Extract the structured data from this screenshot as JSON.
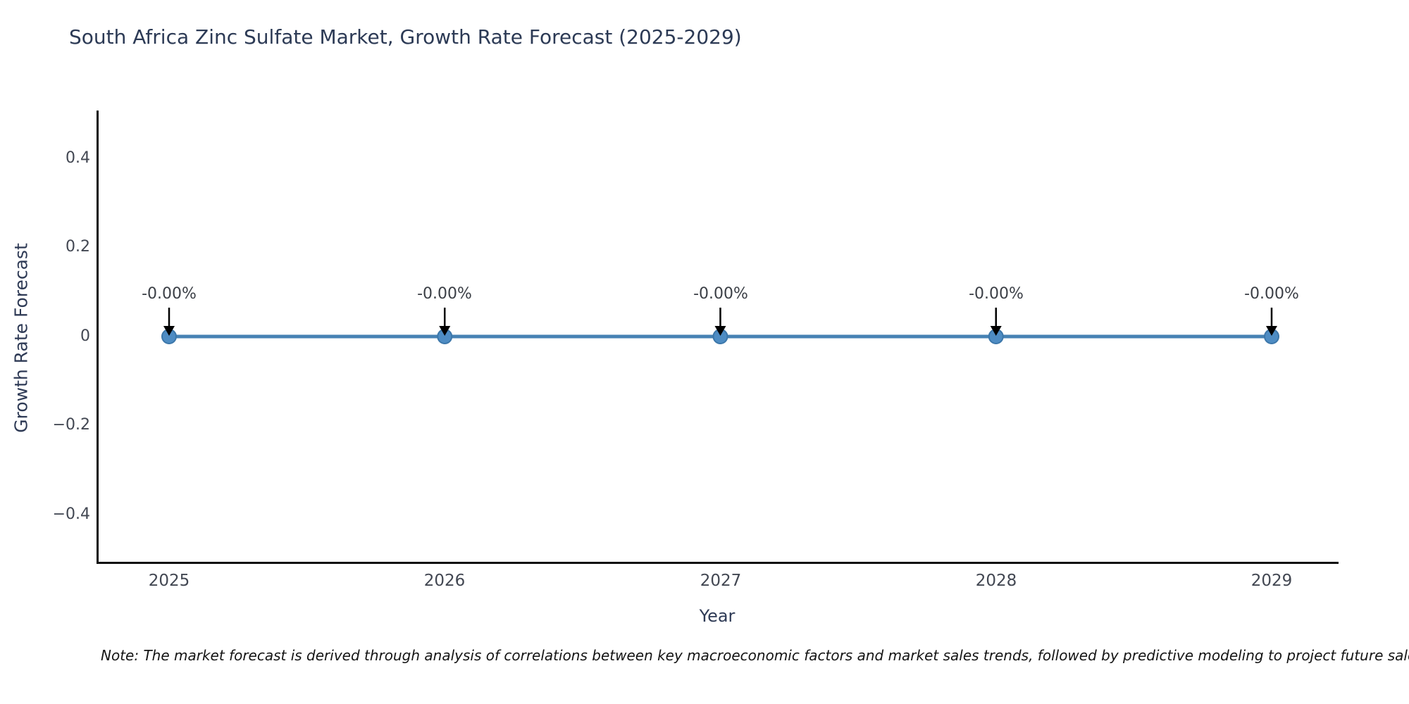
{
  "title": "South Africa Zinc Sulfate Market, Growth Rate Forecast (2025-2029)",
  "note": "Note: The market forecast is derived through analysis of correlations between key macroeconomic factors and market sales trends, followed by predictive modeling to project future sales",
  "chart_data": {
    "type": "line",
    "title": "South Africa Zinc Sulfate Market, Growth Rate Forecast (2025-2029)",
    "xlabel": "Year",
    "ylabel": "Growth Rate Forecast",
    "x": [
      2025,
      2026,
      2027,
      2028,
      2029
    ],
    "series": [
      {
        "name": "Growth Rate Forecast",
        "values": [
          0,
          0,
          0,
          0,
          0
        ]
      }
    ],
    "point_labels": [
      "-0.00%",
      "-0.00%",
      "-0.00%",
      "-0.00%",
      "-0.00%"
    ],
    "x_ticks": [
      "2025",
      "2026",
      "2027",
      "2028",
      "2029"
    ],
    "y_ticks": [
      "0.4",
      "0.2",
      "0",
      "−0.2",
      "−0.4"
    ],
    "y_tick_values": [
      0.4,
      0.2,
      0,
      -0.2,
      -0.4
    ],
    "ylim": [
      -0.5,
      0.5
    ],
    "grid": false,
    "legend": "none",
    "colors": {
      "line": "#4682b4",
      "marker_fill": "#4e8cc3",
      "marker_edge": "#3c77aa",
      "arrow": "#000000",
      "axis_line": "#0d0d0d"
    }
  }
}
